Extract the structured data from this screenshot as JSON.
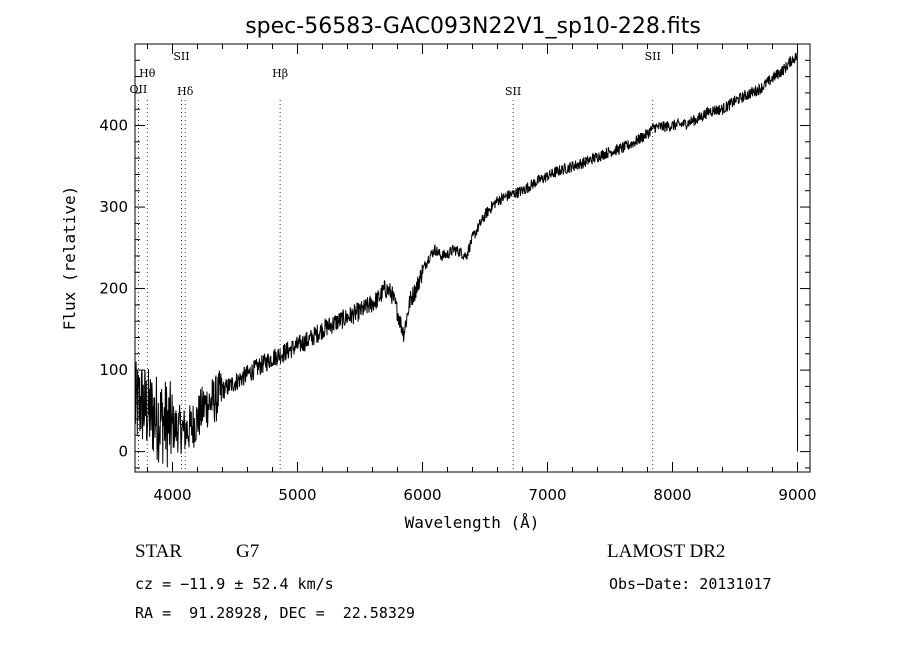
{
  "chart_data": {
    "type": "line",
    "title": "spec-56583-GAC093N22V1_sp10-228.fits",
    "xlabel": "Wavelength (Å)",
    "ylabel": "Flux (relative)",
    "xlim": [
      3700,
      9100
    ],
    "ylim": [
      -25,
      500
    ],
    "xticks": [
      4000,
      5000,
      6000,
      7000,
      8000,
      9000
    ],
    "yticks": [
      0,
      100,
      200,
      300,
      400
    ],
    "grid": false,
    "series": [
      {
        "x": [
          3700,
          3750,
          3800,
          3850,
          3900,
          3950,
          4000,
          4050,
          4100,
          4150,
          4200,
          4250,
          4300,
          4350,
          4400,
          4450,
          4500,
          4600,
          4700,
          4800,
          4900,
          5000,
          5100,
          5200,
          5300,
          5400,
          5500,
          5600,
          5650,
          5700,
          5750,
          5800,
          5820,
          5850,
          5900,
          5950,
          6000,
          6050,
          6100,
          6150,
          6200,
          6250,
          6300,
          6350,
          6400,
          6500,
          6550,
          6600,
          6700,
          6800,
          6900,
          7000,
          7100,
          7200,
          7300,
          7400,
          7500,
          7600,
          7700,
          7800,
          7850,
          7900,
          8000,
          8100,
          8200,
          8300,
          8400,
          8500,
          8600,
          8700,
          8800,
          8900,
          8950,
          9000
        ],
        "y": [
          55,
          60,
          50,
          45,
          40,
          35,
          30,
          28,
          25,
          30,
          40,
          55,
          60,
          65,
          75,
          80,
          85,
          95,
          105,
          115,
          122,
          130,
          138,
          150,
          158,
          165,
          172,
          182,
          188,
          200,
          195,
          172,
          160,
          145,
          185,
          200,
          222,
          238,
          248,
          240,
          242,
          248,
          245,
          240,
          262,
          290,
          300,
          308,
          315,
          320,
          330,
          338,
          345,
          350,
          355,
          362,
          368,
          372,
          380,
          390,
          398,
          398,
          400,
          402,
          408,
          418,
          420,
          430,
          438,
          445,
          458,
          470,
          480,
          485
        ]
      }
    ],
    "annotations": [
      {
        "text": "OII",
        "x": 3727
      },
      {
        "text": "Hθ",
        "x": 3798
      },
      {
        "text": "SII",
        "x": 4072
      },
      {
        "text": "Hδ",
        "x": 4102
      },
      {
        "text": "Hβ",
        "x": 4861
      },
      {
        "text": "SII",
        "x": 6725
      },
      {
        "text": "SII",
        "x": 7842
      }
    ]
  },
  "footer": {
    "object_type": "STAR",
    "subclass": "G7",
    "survey": "LAMOST DR2",
    "redshift": "cz = −11.9 ± 52.4 km/s",
    "obs_date": "Obs−Date: 20131017",
    "coords": "RA =  91.28928, DEC =  22.58329"
  }
}
